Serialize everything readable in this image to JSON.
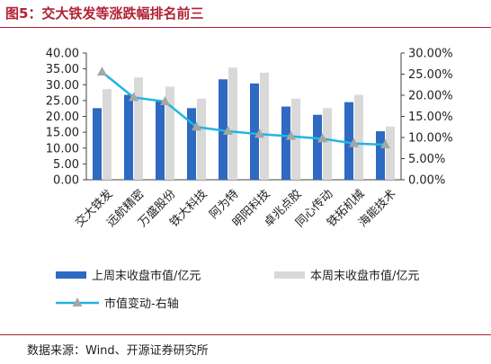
{
  "figure_title": "图5：交大铁发等涨跌幅排名前三",
  "source_note": "数据来源：Wind、开源证券研究所",
  "colors": {
    "title": "#b22234",
    "bar_last_week": "#2e69c2",
    "bar_this_week": "#d9d9d9",
    "line_change": "#1fb5e6",
    "marker": "#a6a6a6"
  },
  "chart_data": {
    "type": "bar",
    "categories": [
      "交大铁发",
      "远航精密",
      "万盛股份",
      "铁大科技",
      "阿为特",
      "明阳科技",
      "卓兆点胶",
      "同心传动",
      "铁拓机械",
      "海能技术"
    ],
    "series": [
      {
        "name": "上周末收盘市值/亿元",
        "type": "bar",
        "axis": "left",
        "values": [
          22.6,
          26.8,
          25.0,
          22.6,
          31.7,
          30.4,
          23.1,
          20.5,
          24.5,
          15.3
        ]
      },
      {
        "name": "本周末收盘市值/亿元",
        "type": "bar",
        "axis": "left",
        "values": [
          28.6,
          32.3,
          29.4,
          25.6,
          35.4,
          33.8,
          25.6,
          22.6,
          26.8,
          16.8
        ]
      },
      {
        "name": "市值变动-右轴",
        "type": "line",
        "axis": "right",
        "values": [
          25.5,
          19.5,
          18.5,
          12.5,
          11.5,
          10.8,
          10.3,
          9.7,
          8.6,
          8.3
        ]
      }
    ],
    "y_left": {
      "min": 0,
      "max": 40,
      "step": 5,
      "ticks": [
        "0.00",
        "5.00",
        "10.00",
        "15.00",
        "20.00",
        "25.00",
        "30.00",
        "35.00",
        "40.00"
      ]
    },
    "y_right": {
      "min": 0,
      "max": 30,
      "step": 5,
      "ticks": [
        "0.00%",
        "5.00%",
        "10.00%",
        "15.00%",
        "20.00%",
        "25.00%",
        "30.00%"
      ]
    },
    "legend_position": "bottom",
    "grid": false
  }
}
